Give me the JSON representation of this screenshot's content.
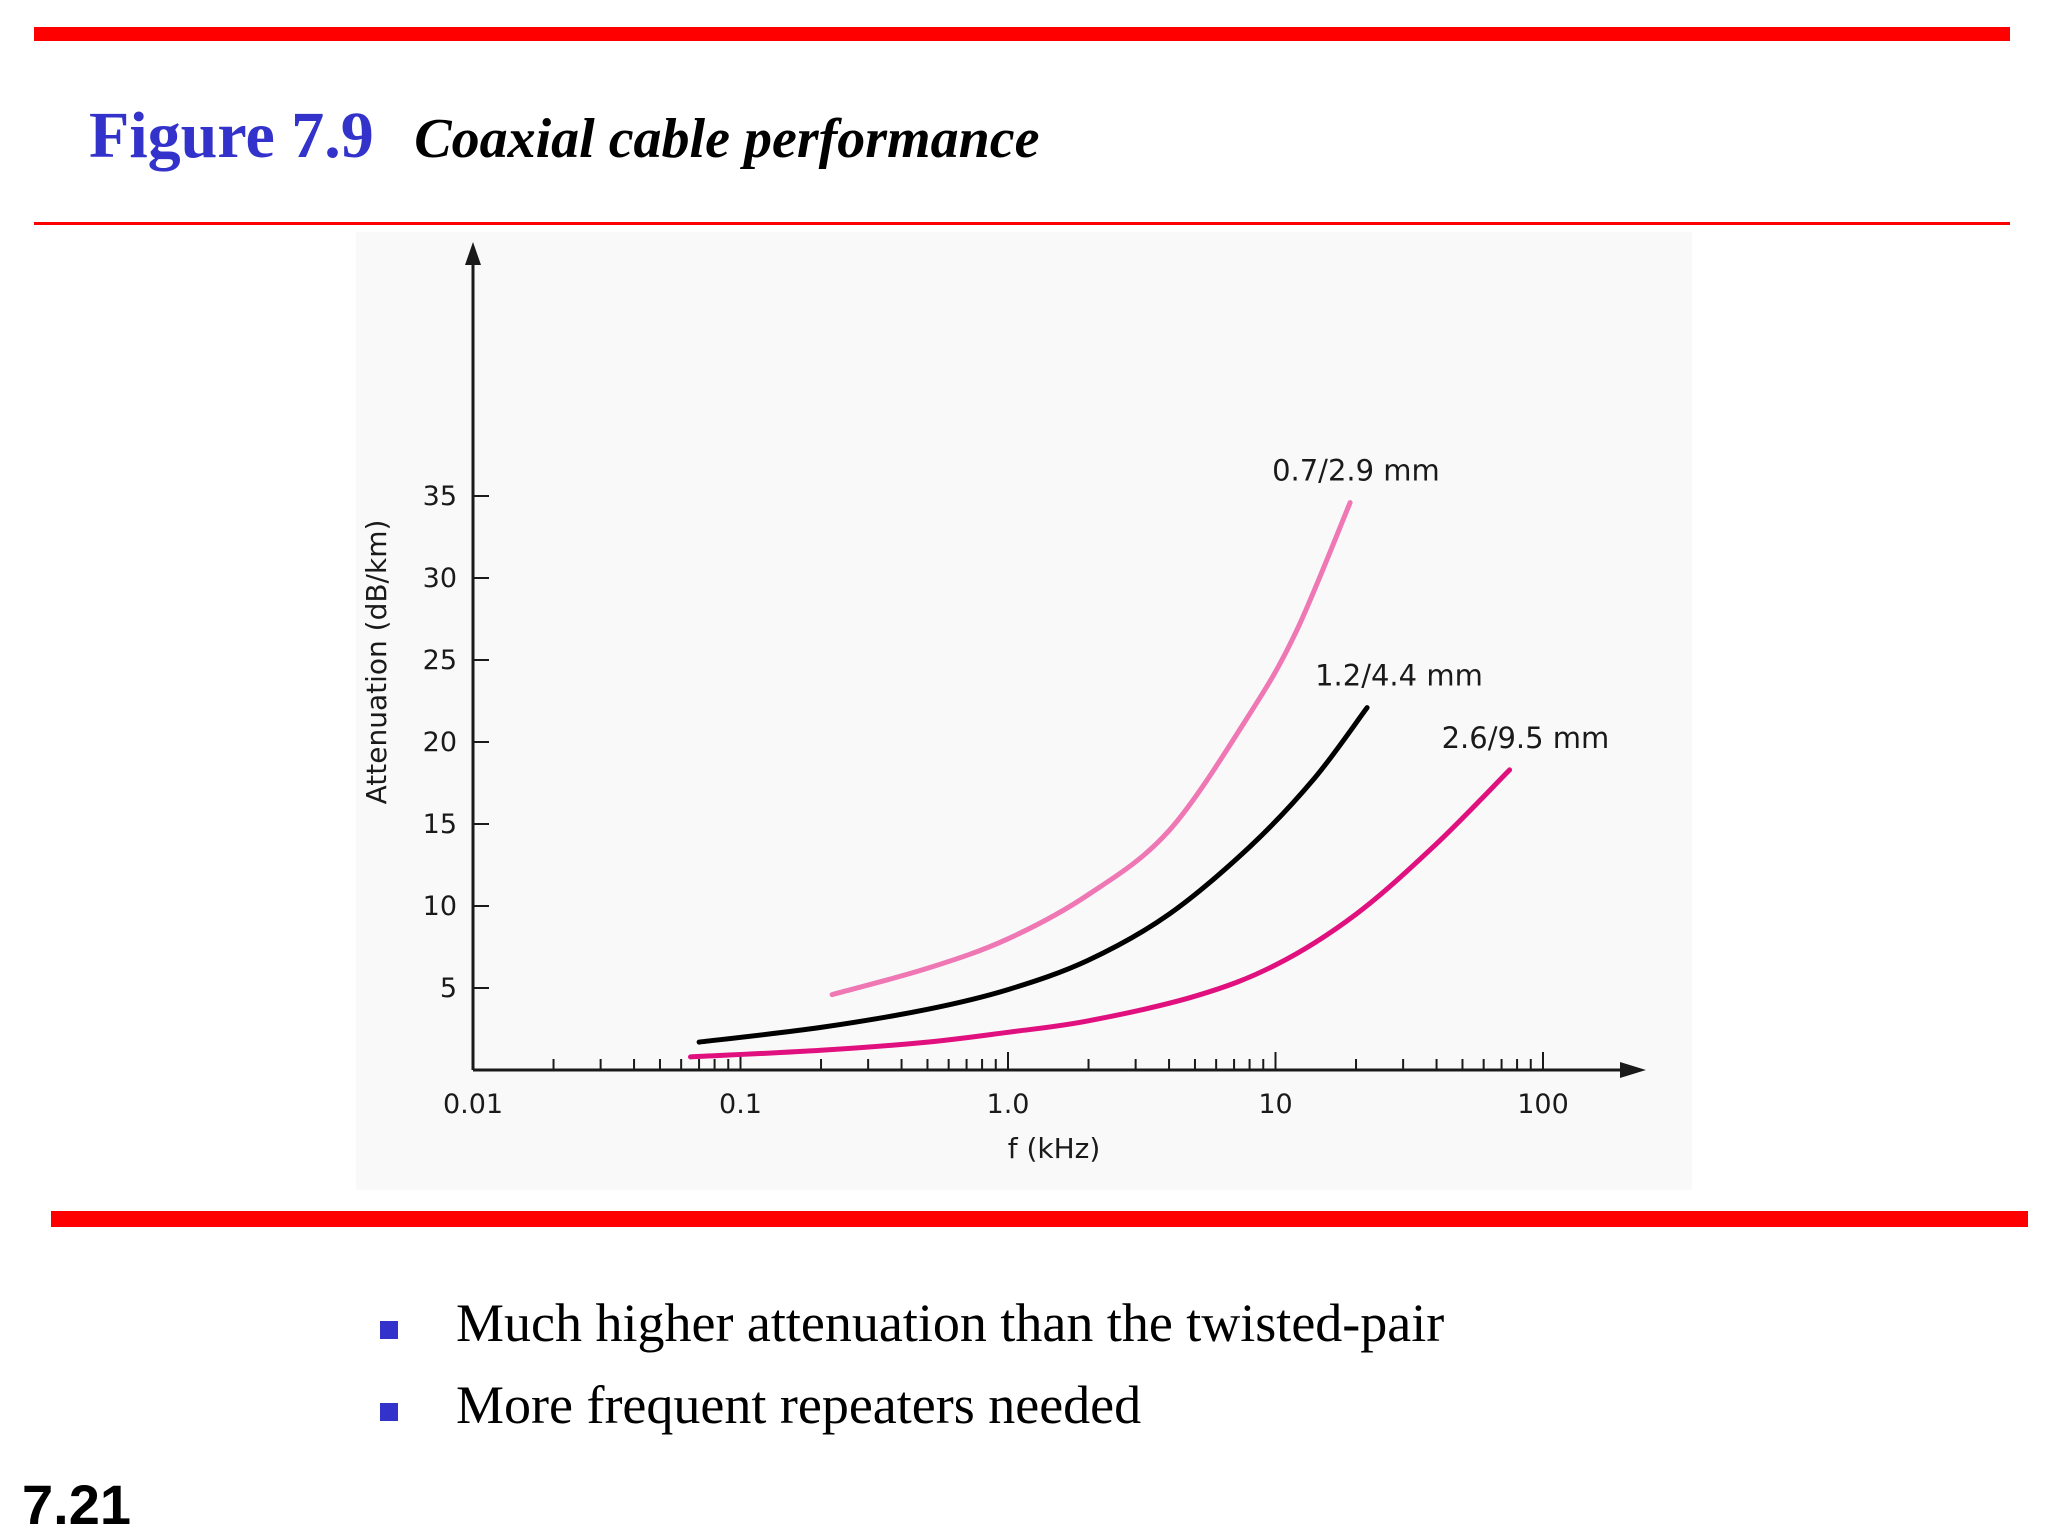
{
  "slide": {
    "figure_label": "Figure 7.9",
    "figure_caption": "Coaxial cable performance",
    "bullets": [
      "Much higher attenuation than the twisted-pair",
      "More frequent repeaters needed"
    ],
    "slide_number": "7.21"
  },
  "colors": {
    "rule": "#ff0000",
    "title": "#3333cc",
    "bullet_mark": "#3333cc"
  },
  "chart_data": {
    "type": "line",
    "xlabel": "f (kHz)",
    "ylabel": "Attenuation (dB/km)",
    "x_scale": "log",
    "xlim": [
      0.01,
      300
    ],
    "ylim": [
      0,
      38
    ],
    "x_ticks": [
      {
        "value": 0.01,
        "label": "0.01"
      },
      {
        "value": 0.1,
        "label": "0.1"
      },
      {
        "value": 1,
        "label": "1.0"
      },
      {
        "value": 10,
        "label": "10"
      },
      {
        "value": 100,
        "label": "100"
      }
    ],
    "y_ticks": [
      {
        "value": 5,
        "label": "5"
      },
      {
        "value": 10,
        "label": "10"
      },
      {
        "value": 15,
        "label": "15"
      },
      {
        "value": 20,
        "label": "20"
      },
      {
        "value": 25,
        "label": "25"
      },
      {
        "value": 30,
        "label": "30"
      },
      {
        "value": 35,
        "label": "35"
      }
    ],
    "grid": false,
    "series": [
      {
        "name": "0.7/2.9 mm",
        "color": "#ee77b4",
        "x": [
          0.22,
          0.5,
          1.0,
          2.0,
          4.0,
          8.0,
          12.0,
          19.0
        ],
        "y": [
          4.6,
          6.2,
          8.0,
          10.7,
          14.6,
          21.7,
          26.8,
          34.6
        ]
      },
      {
        "name": "1.2/4.4 mm",
        "color": "#000000",
        "x": [
          0.07,
          0.2,
          0.5,
          1.0,
          2.0,
          4.0,
          8.0,
          14.0,
          22.0
        ],
        "y": [
          1.7,
          2.6,
          3.7,
          4.9,
          6.7,
          9.5,
          13.6,
          17.8,
          22.1
        ]
      },
      {
        "name": "2.6/9.5 mm",
        "color": "#e0107f",
        "x": [
          0.065,
          0.2,
          0.5,
          1.0,
          2.0,
          5.0,
          10.0,
          20.0,
          40.0,
          75.0
        ],
        "y": [
          0.8,
          1.2,
          1.7,
          2.3,
          3.0,
          4.5,
          6.4,
          9.5,
          13.8,
          18.3
        ]
      }
    ]
  }
}
